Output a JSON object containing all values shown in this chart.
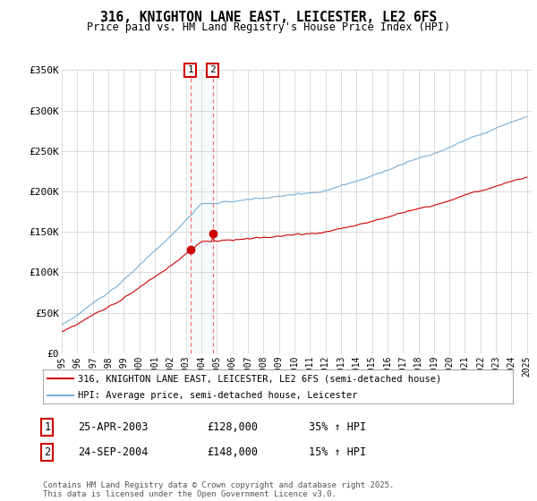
{
  "title": "316, KNIGHTON LANE EAST, LEICESTER, LE2 6FS",
  "subtitle": "Price paid vs. HM Land Registry's House Price Index (HPI)",
  "legend_line1": "316, KNIGHTON LANE EAST, LEICESTER, LE2 6FS (semi-detached house)",
  "legend_line2": "HPI: Average price, semi-detached house, Leicester",
  "purchase1_date": "25-APR-2003",
  "purchase1_price": "£128,000",
  "purchase1_hpi": "35% ↑ HPI",
  "purchase1_year": 2003.29,
  "purchase1_value": 128000,
  "purchase2_date": "24-SEP-2004",
  "purchase2_price": "£148,000",
  "purchase2_hpi": "15% ↑ HPI",
  "purchase2_year": 2004.73,
  "purchase2_value": 148000,
  "footer": "Contains HM Land Registry data © Crown copyright and database right 2025.\nThis data is licensed under the Open Government Licence v3.0.",
  "red_color": "#cc0000",
  "blue_color": "#7aadd4",
  "marker_box_color": "#cc0000",
  "ylim": [
    0,
    350000
  ],
  "yticks": [
    0,
    50000,
    100000,
    150000,
    200000,
    250000,
    300000,
    350000
  ],
  "ytick_labels": [
    "£0",
    "£50K",
    "£100K",
    "£150K",
    "£200K",
    "£250K",
    "£300K",
    "£350K"
  ]
}
